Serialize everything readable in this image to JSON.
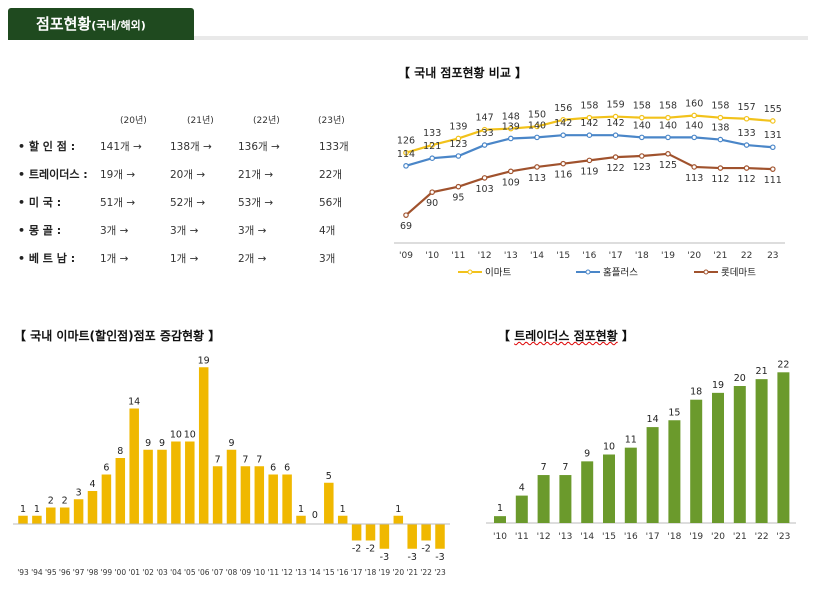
{
  "header": {
    "title": "점포현황",
    "subtitle": "(국내/해외)"
  },
  "table": {
    "years": [
      "(20년)",
      "(21년)",
      "(22년)",
      "(23년)"
    ],
    "rows": [
      {
        "label": "• 할  인  점 :",
        "values": [
          "141개 →",
          "138개 →",
          "136개 →",
          "133개"
        ]
      },
      {
        "label": "• 트레이더스 :",
        "values": [
          "19개 →",
          "20개 →",
          "21개 →",
          "22개"
        ]
      },
      {
        "label": "• 미      국 :",
        "values": [
          "51개 →",
          "52개 →",
          "53개 →",
          "56개"
        ]
      },
      {
        "label": "• 몽      골 :",
        "values": [
          "3개 →",
          "3개 →",
          "3개 →",
          "4개"
        ]
      },
      {
        "label": "• 베  트  남 :",
        "values": [
          "1개 →",
          "1개 →",
          "2개 →",
          "3개"
        ]
      }
    ]
  },
  "colors": {
    "emart": "#f2c21b",
    "homeplus": "#4a86c8",
    "lotte": "#a0522d",
    "bar_yellow": "#f0b800",
    "bar_green": "#6b9a2c",
    "header_green": "#1f4a1f"
  },
  "chart_data": [
    {
      "type": "line",
      "title": "【 국내 점포현황 비교 】",
      "categories": [
        "'09",
        "'10",
        "'11",
        "'12",
        "'13",
        "'14",
        "'15",
        "'16",
        "'17",
        "'18",
        "'19",
        "'20",
        "'21",
        "22",
        "23"
      ],
      "ylim": [
        60,
        165
      ],
      "legend_position": "bottom",
      "series": [
        {
          "name": "이마트",
          "values": [
            126,
            133,
            139,
            147,
            148,
            150,
            156,
            158,
            159,
            158,
            158,
            160,
            158,
            157,
            155
          ]
        },
        {
          "name": "홈플러스",
          "values": [
            114,
            121,
            123,
            133,
            139,
            140,
            142,
            142,
            142,
            140,
            140,
            140,
            138,
            133,
            131
          ]
        },
        {
          "name": "롯데마트",
          "values": [
            69,
            90,
            95,
            103,
            109,
            113,
            116,
            119,
            122,
            123,
            125,
            113,
            112,
            112,
            111
          ]
        }
      ]
    },
    {
      "type": "bar",
      "title": "【 국내 이마트(할인점)점포 증감현황 】",
      "categories": [
        "'93",
        "'94",
        "'95",
        "'96",
        "'97",
        "'98",
        "'99",
        "'00",
        "'01",
        "'02",
        "'03",
        "'04",
        "'05",
        "'06",
        "'07",
        "'08",
        "'09",
        "'10",
        "'11",
        "'12",
        "'13",
        "'14",
        "'15",
        "'16",
        "'17",
        "'18",
        "'19",
        "'20",
        "'21",
        "'22",
        "'23"
      ],
      "values": [
        1,
        1,
        2,
        2,
        3,
        4,
        6,
        8,
        14,
        9,
        9,
        10,
        10,
        19,
        7,
        9,
        7,
        7,
        6,
        6,
        1,
        0,
        5,
        1,
        -2,
        -2,
        -3,
        1,
        -3,
        -2,
        -3
      ],
      "ylim": [
        -4,
        20
      ]
    },
    {
      "type": "bar",
      "title": "【 트레이더스 점포현황 】",
      "categories": [
        "'10",
        "'11",
        "'12",
        "'13",
        "'14",
        "'15",
        "'16",
        "'17",
        "'18",
        "'19",
        "'20",
        "'21",
        "'22",
        "'23"
      ],
      "values": [
        1,
        4,
        7,
        7,
        9,
        10,
        11,
        14,
        15,
        18,
        19,
        20,
        21,
        22
      ],
      "ylim": [
        0,
        23
      ]
    }
  ]
}
